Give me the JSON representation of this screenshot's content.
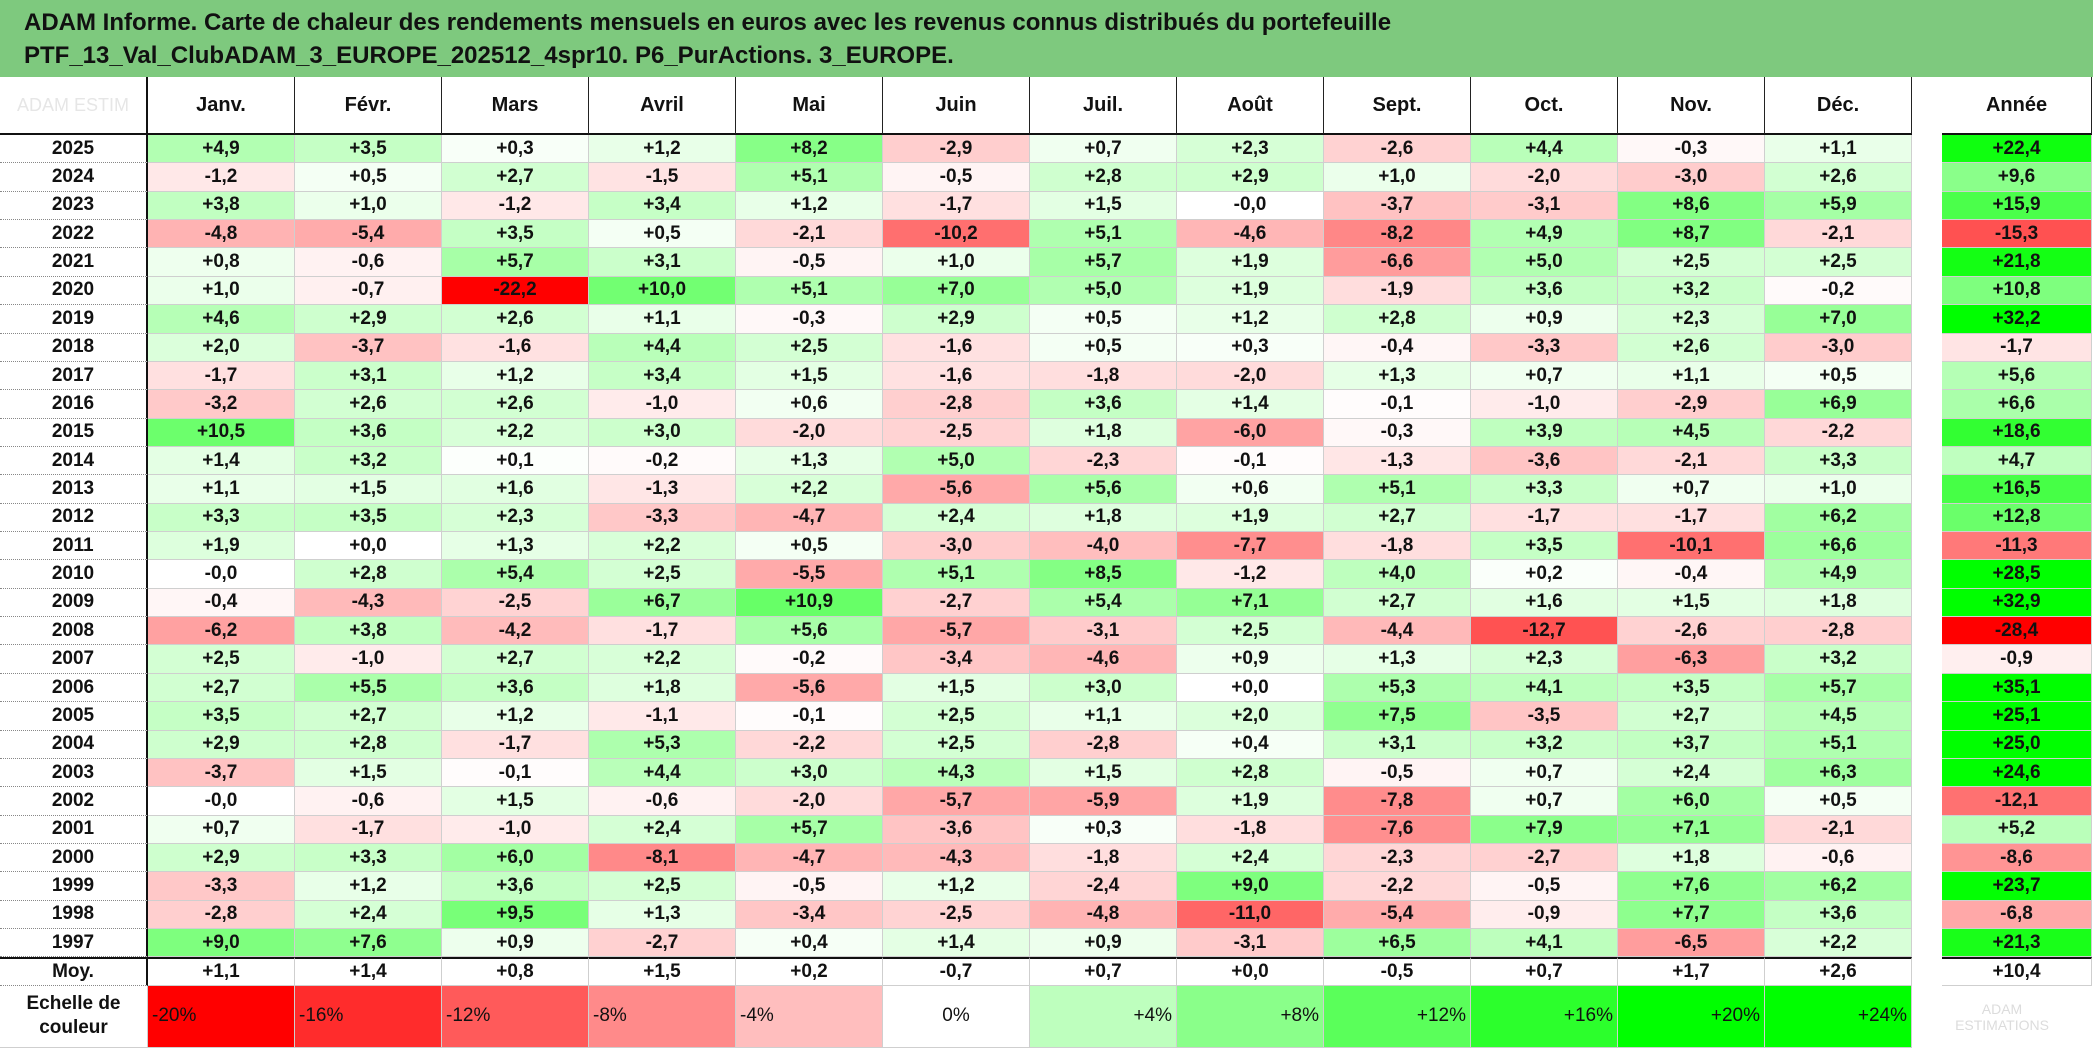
{
  "title": {
    "line1": "ADAM Informe. Carte de chaleur des rendements mensuels en euros avec les revenus connus distribués du portefeuille",
    "line2": "PTF_13_Val_ClubADAM_3_EUROPE_202512_4spr10. P6_PurActions. 3_EUROPE."
  },
  "chart_data": {
    "type": "heatmap",
    "corner_label": "ADAM ESTIM",
    "columns": [
      "Janv.",
      "Févr.",
      "Mars",
      "Avril",
      "Mai",
      "Juin",
      "Juil.",
      "Août",
      "Sept.",
      "Oct.",
      "Nov.",
      "Déc."
    ],
    "year_column": "Année",
    "rows": [
      {
        "year": "2025",
        "values": [
          "+4,9",
          "+3,5",
          "+0,3",
          "+1,2",
          "+8,2",
          "-2,9",
          "+0,7",
          "+2,3",
          "-2,6",
          "+4,4",
          "-0,3",
          "+1,1"
        ],
        "annual": "+22,4"
      },
      {
        "year": "2024",
        "values": [
          "-1,2",
          "+0,5",
          "+2,7",
          "-1,5",
          "+5,1",
          "-0,5",
          "+2,8",
          "+2,9",
          "+1,0",
          "-2,0",
          "-3,0",
          "+2,6"
        ],
        "annual": "+9,6"
      },
      {
        "year": "2023",
        "values": [
          "+3,8",
          "+1,0",
          "-1,2",
          "+3,4",
          "+1,2",
          "-1,7",
          "+1,5",
          "-0,0",
          "-3,7",
          "-3,1",
          "+8,6",
          "+5,9"
        ],
        "annual": "+15,9"
      },
      {
        "year": "2022",
        "values": [
          "-4,8",
          "-5,4",
          "+3,5",
          "+0,5",
          "-2,1",
          "-10,2",
          "+5,1",
          "-4,6",
          "-8,2",
          "+4,9",
          "+8,7",
          "-2,1"
        ],
        "annual": "-15,3"
      },
      {
        "year": "2021",
        "values": [
          "+0,8",
          "-0,6",
          "+5,7",
          "+3,1",
          "-0,5",
          "+1,0",
          "+5,7",
          "+1,9",
          "-6,6",
          "+5,0",
          "+2,5",
          "+2,5"
        ],
        "annual": "+21,8"
      },
      {
        "year": "2020",
        "values": [
          "+1,0",
          "-0,7",
          "-22,2",
          "+10,0",
          "+5,1",
          "+7,0",
          "+5,0",
          "+1,9",
          "-1,9",
          "+3,6",
          "+3,2",
          "-0,2"
        ],
        "annual": "+10,8"
      },
      {
        "year": "2019",
        "values": [
          "+4,6",
          "+2,9",
          "+2,6",
          "+1,1",
          "-0,3",
          "+2,9",
          "+0,5",
          "+1,2",
          "+2,8",
          "+0,9",
          "+2,3",
          "+7,0"
        ],
        "annual": "+32,2"
      },
      {
        "year": "2018",
        "values": [
          "+2,0",
          "-3,7",
          "-1,6",
          "+4,4",
          "+2,5",
          "-1,6",
          "+0,5",
          "+0,3",
          "-0,4",
          "-3,3",
          "+2,6",
          "-3,0"
        ],
        "annual": "-1,7"
      },
      {
        "year": "2017",
        "values": [
          "-1,7",
          "+3,1",
          "+1,2",
          "+3,4",
          "+1,5",
          "-1,6",
          "-1,8",
          "-2,0",
          "+1,3",
          "+0,7",
          "+1,1",
          "+0,5"
        ],
        "annual": "+5,6"
      },
      {
        "year": "2016",
        "values": [
          "-3,2",
          "+2,6",
          "+2,6",
          "-1,0",
          "+0,6",
          "-2,8",
          "+3,6",
          "+1,4",
          "-0,1",
          "-1,0",
          "-2,9",
          "+6,9"
        ],
        "annual": "+6,6"
      },
      {
        "year": "2015",
        "values": [
          "+10,5",
          "+3,6",
          "+2,2",
          "+3,0",
          "-2,0",
          "-2,5",
          "+1,8",
          "-6,0",
          "-0,3",
          "+3,9",
          "+4,5",
          "-2,2"
        ],
        "annual": "+18,6"
      },
      {
        "year": "2014",
        "values": [
          "+1,4",
          "+3,2",
          "+0,1",
          "-0,2",
          "+1,3",
          "+5,0",
          "-2,3",
          "-0,1",
          "-1,3",
          "-3,6",
          "-2,1",
          "+3,3"
        ],
        "annual": "+4,7"
      },
      {
        "year": "2013",
        "values": [
          "+1,1",
          "+1,5",
          "+1,6",
          "-1,3",
          "+2,2",
          "-5,6",
          "+5,6",
          "+0,6",
          "+5,1",
          "+3,3",
          "+0,7",
          "+1,0"
        ],
        "annual": "+16,5"
      },
      {
        "year": "2012",
        "values": [
          "+3,3",
          "+3,5",
          "+2,3",
          "-3,3",
          "-4,7",
          "+2,4",
          "+1,8",
          "+1,9",
          "+2,7",
          "-1,7",
          "-1,7",
          "+6,2"
        ],
        "annual": "+12,8"
      },
      {
        "year": "2011",
        "values": [
          "+1,9",
          "+0,0",
          "+1,3",
          "+2,2",
          "+0,5",
          "-3,0",
          "-4,0",
          "-7,7",
          "-1,8",
          "+3,5",
          "-10,1",
          "+6,6"
        ],
        "annual": "-11,3"
      },
      {
        "year": "2010",
        "values": [
          "-0,0",
          "+2,8",
          "+5,4",
          "+2,5",
          "-5,5",
          "+5,1",
          "+8,5",
          "-1,2",
          "+4,0",
          "+0,2",
          "-0,4",
          "+4,9"
        ],
        "annual": "+28,5"
      },
      {
        "year": "2009",
        "values": [
          "-0,4",
          "-4,3",
          "-2,5",
          "+6,7",
          "+10,9",
          "-2,7",
          "+5,4",
          "+7,1",
          "+2,7",
          "+1,6",
          "+1,5",
          "+1,8"
        ],
        "annual": "+32,9"
      },
      {
        "year": "2008",
        "values": [
          "-6,2",
          "+3,8",
          "-4,2",
          "-1,7",
          "+5,6",
          "-5,7",
          "-3,1",
          "+2,5",
          "-4,4",
          "-12,7",
          "-2,6",
          "-2,8"
        ],
        "annual": "-28,4"
      },
      {
        "year": "2007",
        "values": [
          "+2,5",
          "-1,0",
          "+2,7",
          "+2,2",
          "-0,2",
          "-3,4",
          "-4,6",
          "+0,9",
          "+1,3",
          "+2,3",
          "-6,3",
          "+3,2"
        ],
        "annual": "-0,9"
      },
      {
        "year": "2006",
        "values": [
          "+2,7",
          "+5,5",
          "+3,6",
          "+1,8",
          "-5,6",
          "+1,5",
          "+3,0",
          "+0,0",
          "+5,3",
          "+4,1",
          "+3,5",
          "+5,7"
        ],
        "annual": "+35,1"
      },
      {
        "year": "2005",
        "values": [
          "+3,5",
          "+2,7",
          "+1,2",
          "-1,1",
          "-0,1",
          "+2,5",
          "+1,1",
          "+2,0",
          "+7,5",
          "-3,5",
          "+2,7",
          "+4,5"
        ],
        "annual": "+25,1"
      },
      {
        "year": "2004",
        "values": [
          "+2,9",
          "+2,8",
          "-1,7",
          "+5,3",
          "-2,2",
          "+2,5",
          "-2,8",
          "+0,4",
          "+3,1",
          "+3,2",
          "+3,7",
          "+5,1"
        ],
        "annual": "+25,0"
      },
      {
        "year": "2003",
        "values": [
          "-3,7",
          "+1,5",
          "-0,1",
          "+4,4",
          "+3,0",
          "+4,3",
          "+1,5",
          "+2,8",
          "-0,5",
          "+0,7",
          "+2,4",
          "+6,3"
        ],
        "annual": "+24,6"
      },
      {
        "year": "2002",
        "values": [
          "-0,0",
          "-0,6",
          "+1,5",
          "-0,6",
          "-2,0",
          "-5,7",
          "-5,9",
          "+1,9",
          "-7,8",
          "+0,7",
          "+6,0",
          "+0,5"
        ],
        "annual": "-12,1"
      },
      {
        "year": "2001",
        "values": [
          "+0,7",
          "-1,7",
          "-1,0",
          "+2,4",
          "+5,7",
          "-3,6",
          "+0,3",
          "-1,8",
          "-7,6",
          "+7,9",
          "+7,1",
          "-2,1"
        ],
        "annual": "+5,2"
      },
      {
        "year": "2000",
        "values": [
          "+2,9",
          "+3,3",
          "+6,0",
          "-8,1",
          "-4,7",
          "-4,3",
          "-1,8",
          "+2,4",
          "-2,3",
          "-2,7",
          "+1,8",
          "-0,6"
        ],
        "annual": "-8,6"
      },
      {
        "year": "1999",
        "values": [
          "-3,3",
          "+1,2",
          "+3,6",
          "+2,5",
          "-0,5",
          "+1,2",
          "-2,4",
          "+9,0",
          "-2,2",
          "-0,5",
          "+7,6",
          "+6,2"
        ],
        "annual": "+23,7"
      },
      {
        "year": "1998",
        "values": [
          "-2,8",
          "+2,4",
          "+9,5",
          "+1,3",
          "-3,4",
          "-2,5",
          "-4,8",
          "-11,0",
          "-5,4",
          "-0,9",
          "+7,7",
          "+3,6"
        ],
        "annual": "-6,8"
      },
      {
        "year": "1997",
        "values": [
          "+9,0",
          "+7,6",
          "+0,9",
          "-2,7",
          "+0,4",
          "+1,4",
          "+0,9",
          "-3,1",
          "+6,5",
          "+4,1",
          "-6,5",
          "+2,2"
        ],
        "annual": "+21,3"
      }
    ],
    "average": {
      "label": "Moy.",
      "values": [
        "+1,1",
        "+1,4",
        "+0,8",
        "+1,5",
        "+0,2",
        "-0,7",
        "+0,7",
        "+0,0",
        "-0,5",
        "+0,7",
        "+1,7",
        "+2,6"
      ],
      "annual": "+10,4"
    },
    "color_scale": {
      "label_line1": "Echelle de",
      "label_line2": "couleur",
      "steps": [
        "-20%",
        "-16%",
        "-12%",
        "-8%",
        "-4%",
        "0%",
        "+4%",
        "+8%",
        "+12%",
        "+16%",
        "+20%",
        "+24%"
      ],
      "faint_line1": "ADAM",
      "faint_line2": "ESTIMATIONS",
      "negative_color": "#ff0000",
      "positive_color": "#00ff00",
      "neutral_color": "#ffffff"
    }
  }
}
